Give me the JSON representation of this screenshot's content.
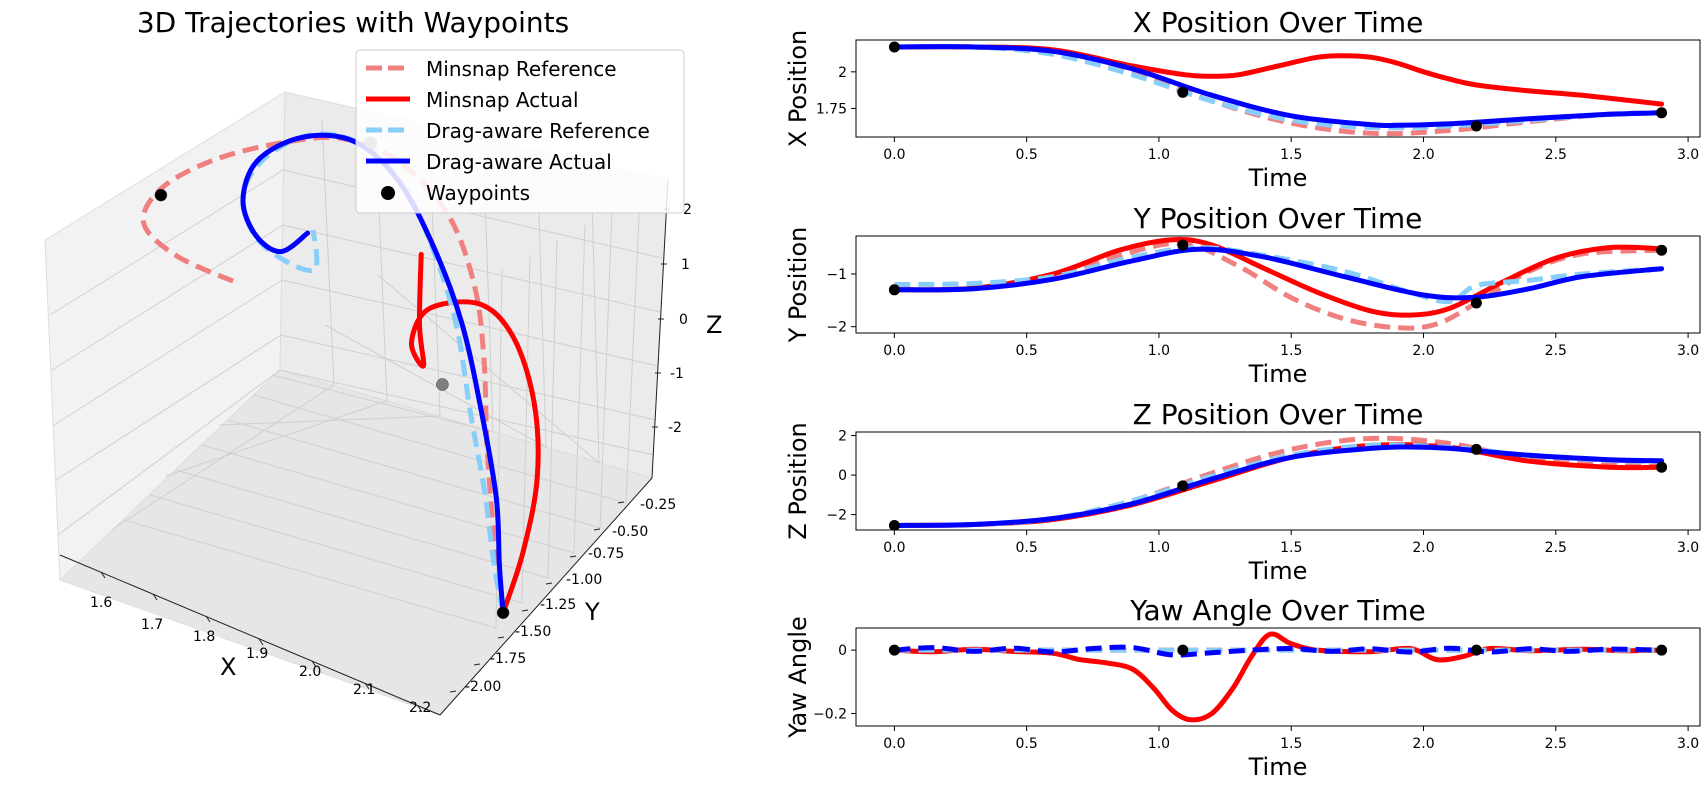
{
  "chart_data": [
    {
      "type": "line",
      "projection": "3d",
      "title": "3D Trajectories with Waypoints",
      "xlabel": "X",
      "ylabel": "Y",
      "zlabel": "Z",
      "xlim": [
        1.55,
        2.22
      ],
      "ylim": [
        -2.05,
        -0.2
      ],
      "zlim": [
        -2.5,
        2.0
      ],
      "xticks": [
        "1.6",
        "1.7",
        "1.8",
        "1.9",
        "2.0",
        "2.1",
        "2.2"
      ],
      "yticks": [
        "-0.25",
        "-0.50",
        "-0.75",
        "-1.00",
        "-1.25",
        "-1.50",
        "-1.75",
        "-2.00"
      ],
      "zticks": [
        "2",
        "1",
        "0",
        "-1",
        "-2"
      ],
      "legend": {
        "placement": "top-right",
        "entries": [
          "Minsnap Reference",
          "Minsnap Actual",
          "Drag-aware Reference",
          "Drag-aware Actual",
          "Waypoints"
        ]
      },
      "series": [
        {
          "name": "Minsnap Reference",
          "color": "#f08080",
          "style": "dashed",
          "points": [
            [
              2.18,
              -1.3,
              -2.55
            ],
            [
              2.16,
              -1.25,
              -2.1
            ],
            [
              2.13,
              -1.18,
              -1.5
            ],
            [
              2.09,
              -1.05,
              -0.8
            ],
            [
              2.04,
              -0.85,
              -0.1
            ],
            [
              1.98,
              -0.65,
              0.4
            ],
            [
              1.9,
              -0.5,
              0.9
            ],
            [
              1.8,
              -0.45,
              1.25
            ],
            [
              1.72,
              -0.55,
              1.5
            ],
            [
              1.66,
              -0.8,
              1.7
            ],
            [
              1.6,
              -1.1,
              1.8
            ],
            [
              1.57,
              -1.4,
              1.85
            ],
            [
              1.58,
              -1.6,
              1.75
            ],
            [
              1.65,
              -1.65,
              1.6
            ],
            [
              1.75,
              -1.6,
              1.45
            ]
          ]
        },
        {
          "name": "Minsnap Actual",
          "color": "#ff0000",
          "style": "solid",
          "points": [
            [
              2.18,
              -1.3,
              -2.55
            ],
            [
              2.19,
              -1.2,
              -1.8
            ],
            [
              2.18,
              -1.05,
              -1.0
            ],
            [
              2.14,
              -0.9,
              -0.3
            ],
            [
              2.07,
              -0.75,
              0.15
            ],
            [
              2.0,
              -0.7,
              0.3
            ],
            [
              1.94,
              -0.85,
              0.3
            ],
            [
              1.96,
              -1.1,
              0.35
            ],
            [
              2.02,
              -1.3,
              0.6
            ],
            [
              2.0,
              -1.25,
              1.05
            ],
            [
              1.95,
              -1.0,
              1.45
            ]
          ]
        },
        {
          "name": "Drag-aware Reference",
          "color": "#87cefa",
          "style": "dashed",
          "points": [
            [
              2.18,
              -1.3,
              -2.55
            ],
            [
              2.15,
              -1.25,
              -2.0
            ],
            [
              2.11,
              -1.15,
              -1.3
            ],
            [
              2.05,
              -1.0,
              -0.6
            ],
            [
              1.98,
              -0.8,
              0.1
            ],
            [
              1.9,
              -0.62,
              0.6
            ],
            [
              1.82,
              -0.5,
              1.05
            ],
            [
              1.74,
              -0.48,
              1.35
            ],
            [
              1.68,
              -0.62,
              1.55
            ],
            [
              1.65,
              -0.88,
              1.6
            ],
            [
              1.66,
              -1.12,
              1.55
            ],
            [
              1.71,
              -1.28,
              1.45
            ],
            [
              1.77,
              -1.32,
              1.35
            ],
            [
              1.82,
              -1.28,
              1.3
            ],
            [
              1.78,
              -1.1,
              1.4
            ]
          ]
        },
        {
          "name": "Drag-aware Actual",
          "color": "#0000ff",
          "style": "solid",
          "points": [
            [
              2.18,
              -1.3,
              -2.55
            ],
            [
              2.16,
              -1.25,
              -2.0
            ],
            [
              2.13,
              -1.15,
              -1.3
            ],
            [
              2.07,
              -1.0,
              -0.55
            ],
            [
              1.99,
              -0.8,
              0.15
            ],
            [
              1.9,
              -0.62,
              0.65
            ],
            [
              1.81,
              -0.5,
              1.1
            ],
            [
              1.73,
              -0.5,
              1.4
            ],
            [
              1.67,
              -0.66,
              1.55
            ],
            [
              1.64,
              -0.9,
              1.55
            ],
            [
              1.66,
              -1.12,
              1.45
            ],
            [
              1.71,
              -1.25,
              1.35
            ],
            [
              1.76,
              -1.28,
              1.35
            ],
            [
              1.78,
              -1.15,
              1.45
            ]
          ]
        }
      ],
      "waypoints": [
        [
          2.18,
          -1.3,
          -2.55
        ],
        [
          1.98,
          -0.9,
          -0.6
        ],
        [
          1.75,
          -0.45,
          1.35
        ],
        [
          1.57,
          -1.4,
          1.75
        ]
      ]
    },
    {
      "type": "line",
      "title": "X Position Over Time",
      "xlabel": "Time",
      "ylabel": "X Position",
      "xlim": [
        -0.145,
        3.045
      ],
      "ylim": [
        1.555,
        2.2175
      ],
      "xticks": [
        0.0,
        0.5,
        1.0,
        1.5,
        2.0,
        2.5,
        3.0
      ],
      "yticks": [
        1.75,
        2.0
      ],
      "series": [
        {
          "name": "Minsnap Reference",
          "color": "#f08080",
          "style": "dashed",
          "x": [
            0,
            0.3,
            0.6,
            0.9,
            1.2,
            1.5,
            1.8,
            2.1,
            2.4,
            2.7,
            2.9
          ],
          "values": [
            2.17,
            2.17,
            2.13,
            2.0,
            1.8,
            1.65,
            1.58,
            1.6,
            1.66,
            1.71,
            1.72
          ]
        },
        {
          "name": "Minsnap Actual",
          "color": "#ff0000",
          "style": "solid",
          "x": [
            0,
            0.3,
            0.6,
            0.9,
            1.1,
            1.2,
            1.3,
            1.45,
            1.6,
            1.7,
            1.8,
            1.9,
            2.0,
            2.1,
            2.2,
            2.4,
            2.6,
            2.9
          ],
          "values": [
            2.17,
            2.17,
            2.15,
            2.04,
            1.98,
            1.97,
            1.98,
            2.04,
            2.1,
            2.11,
            2.1,
            2.06,
            2.0,
            1.95,
            1.91,
            1.87,
            1.84,
            1.78
          ]
        },
        {
          "name": "Drag-aware Reference",
          "color": "#87cefa",
          "style": "dashed",
          "x": [
            0,
            0.3,
            0.6,
            0.9,
            1.2,
            1.5,
            1.8,
            2.1,
            2.4,
            2.7,
            2.9
          ],
          "values": [
            2.17,
            2.17,
            2.12,
            1.98,
            1.8,
            1.67,
            1.62,
            1.63,
            1.67,
            1.71,
            1.72
          ]
        },
        {
          "name": "Drag-aware Actual",
          "color": "#0000ff",
          "style": "solid",
          "x": [
            0,
            0.3,
            0.6,
            0.9,
            1.2,
            1.5,
            1.8,
            1.9,
            2.1,
            2.4,
            2.7,
            2.9
          ],
          "values": [
            2.17,
            2.17,
            2.14,
            2.02,
            1.84,
            1.7,
            1.64,
            1.635,
            1.645,
            1.68,
            1.71,
            1.72
          ]
        }
      ],
      "waypoints": {
        "x": [
          0,
          1.09,
          2.2,
          2.9
        ],
        "values": [
          2.17,
          1.86,
          1.63,
          1.72
        ]
      }
    },
    {
      "type": "line",
      "title": "Y Position Over Time",
      "xlabel": "Time",
      "ylabel": "Y Position",
      "xlim": [
        -0.145,
        3.045
      ],
      "ylim": [
        -2.12,
        -0.28
      ],
      "xticks": [
        0.0,
        0.5,
        1.0,
        1.5,
        2.0,
        2.5,
        3.0
      ],
      "yticks": [
        -2,
        -1
      ],
      "series": [
        {
          "name": "Minsnap Reference",
          "color": "#f08080",
          "style": "dashed",
          "x": [
            0,
            0.3,
            0.6,
            0.85,
            1.09,
            1.3,
            1.5,
            1.7,
            1.9,
            2.05,
            2.2,
            2.4,
            2.6,
            2.9
          ],
          "values": [
            -1.3,
            -1.27,
            -1.05,
            -0.65,
            -0.42,
            -0.85,
            -1.45,
            -1.85,
            -2.02,
            -1.95,
            -1.55,
            -0.95,
            -0.62,
            -0.55
          ]
        },
        {
          "name": "Minsnap Actual",
          "color": "#ff0000",
          "style": "solid",
          "x": [
            0,
            0.3,
            0.6,
            0.85,
            1.05,
            1.2,
            1.4,
            1.6,
            1.8,
            1.95,
            2.1,
            2.3,
            2.5,
            2.7,
            2.9
          ],
          "values": [
            -1.3,
            -1.27,
            -1.0,
            -0.55,
            -0.35,
            -0.45,
            -0.9,
            -1.35,
            -1.7,
            -1.78,
            -1.65,
            -1.15,
            -0.7,
            -0.5,
            -0.52
          ]
        },
        {
          "name": "Drag-aware Reference",
          "color": "#87cefa",
          "style": "dashed",
          "x": [
            0,
            0.3,
            0.6,
            0.9,
            1.15,
            1.4,
            1.7,
            1.95,
            2.1,
            2.2,
            2.4,
            2.6,
            2.9
          ],
          "values": [
            -1.2,
            -1.18,
            -1.05,
            -0.68,
            -0.5,
            -0.65,
            -0.95,
            -1.35,
            -1.52,
            -1.22,
            -1.12,
            -1.0,
            -0.9
          ]
        },
        {
          "name": "Drag-aware Actual",
          "color": "#0000ff",
          "style": "solid",
          "x": [
            0,
            0.3,
            0.6,
            0.9,
            1.15,
            1.4,
            1.7,
            2.0,
            2.2,
            2.4,
            2.6,
            2.9
          ],
          "values": [
            -1.3,
            -1.28,
            -1.1,
            -0.75,
            -0.53,
            -0.68,
            -1.05,
            -1.4,
            -1.44,
            -1.28,
            -1.05,
            -0.9
          ]
        }
      ],
      "waypoints": {
        "x": [
          0,
          1.09,
          2.2,
          2.9
        ],
        "values": [
          -1.3,
          -0.45,
          -1.55,
          -0.55
        ]
      }
    },
    {
      "type": "line",
      "title": "Z Position Over Time",
      "xlabel": "Time",
      "ylabel": "Z Position",
      "xlim": [
        -0.145,
        3.045
      ],
      "ylim": [
        -2.78,
        2.18
      ],
      "xticks": [
        0.0,
        0.5,
        1.0,
        1.5,
        2.0,
        2.5,
        3.0
      ],
      "yticks": [
        -2,
        0,
        2
      ],
      "series": [
        {
          "name": "Minsnap Reference",
          "color": "#f08080",
          "style": "dashed",
          "x": [
            0,
            0.3,
            0.6,
            0.9,
            1.2,
            1.5,
            1.8,
            2.1,
            2.4,
            2.7,
            2.9
          ],
          "values": [
            -2.55,
            -2.5,
            -2.2,
            -1.3,
            0.1,
            1.3,
            1.85,
            1.6,
            0.8,
            0.5,
            0.45
          ]
        },
        {
          "name": "Minsnap Actual",
          "color": "#ff0000",
          "style": "solid",
          "x": [
            0,
            0.3,
            0.6,
            0.9,
            1.2,
            1.5,
            1.8,
            2.1,
            2.4,
            2.7,
            2.9
          ],
          "values": [
            -2.55,
            -2.5,
            -2.25,
            -1.5,
            -0.3,
            0.9,
            1.5,
            1.4,
            0.7,
            0.4,
            0.4
          ]
        },
        {
          "name": "Drag-aware Reference",
          "color": "#87cefa",
          "style": "dashed",
          "x": [
            0,
            0.3,
            0.6,
            0.9,
            1.2,
            1.5,
            1.8,
            2.1,
            2.4,
            2.7,
            2.9
          ],
          "values": [
            -2.55,
            -2.5,
            -2.2,
            -1.3,
            -0.05,
            1.0,
            1.5,
            1.4,
            1.0,
            0.75,
            0.7
          ]
        },
        {
          "name": "Drag-aware Actual",
          "color": "#0000ff",
          "style": "solid",
          "x": [
            0,
            0.3,
            0.6,
            0.9,
            1.2,
            1.5,
            1.8,
            1.95,
            2.1,
            2.4,
            2.7,
            2.9
          ],
          "values": [
            -2.55,
            -2.5,
            -2.2,
            -1.45,
            -0.2,
            0.9,
            1.35,
            1.42,
            1.35,
            1.0,
            0.78,
            0.72
          ]
        }
      ],
      "waypoints": {
        "x": [
          0,
          1.09,
          2.2,
          2.9
        ],
        "values": [
          -2.55,
          -0.55,
          1.3,
          0.4
        ]
      }
    },
    {
      "type": "line",
      "title": "Yaw Angle Over Time",
      "xlabel": "Time",
      "ylabel": "Yaw Angle",
      "xlim": [
        -0.145,
        3.045
      ],
      "ylim": [
        -0.2395,
        0.0698
      ],
      "xticks": [
        0.0,
        0.5,
        1.0,
        1.5,
        2.0,
        2.5,
        3.0
      ],
      "yticks": [
        -0.2,
        0.0
      ],
      "series": [
        {
          "name": "Minsnap Reference",
          "color": "#f08080",
          "style": "dashed",
          "x": [
            0,
            2.9
          ],
          "values": [
            0.0,
            0.0
          ]
        },
        {
          "name": "Minsnap Actual",
          "color": "#ff0000",
          "style": "solid",
          "x": [
            0,
            0.15,
            0.3,
            0.45,
            0.6,
            0.7,
            0.8,
            0.9,
            0.98,
            1.05,
            1.12,
            1.2,
            1.28,
            1.35,
            1.42,
            1.5,
            1.6,
            1.8,
            1.95,
            2.05,
            2.15,
            2.25,
            2.4,
            2.6,
            2.75,
            2.9
          ],
          "values": [
            0.0,
            -0.005,
            0.003,
            -0.004,
            -0.01,
            -0.03,
            -0.04,
            -0.06,
            -0.12,
            -0.19,
            -0.22,
            -0.2,
            -0.12,
            -0.02,
            0.05,
            0.02,
            0.0,
            -0.005,
            0.005,
            -0.03,
            -0.02,
            0.005,
            -0.002,
            0.003,
            -0.002,
            0.0
          ]
        },
        {
          "name": "Drag-aware Reference",
          "color": "#87cefa",
          "style": "dashed",
          "x": [
            0,
            2.9
          ],
          "values": [
            0.0,
            0.0
          ]
        },
        {
          "name": "Drag-aware Actual",
          "color": "#0000ff",
          "style": "dashed",
          "x": [
            0,
            0.15,
            0.3,
            0.45,
            0.6,
            0.75,
            0.9,
            1.05,
            1.2,
            1.35,
            1.5,
            1.65,
            1.8,
            1.95,
            2.1,
            2.25,
            2.4,
            2.55,
            2.7,
            2.9
          ],
          "values": [
            0.0,
            0.008,
            -0.004,
            0.006,
            -0.006,
            0.005,
            0.008,
            -0.015,
            -0.008,
            0.0,
            0.005,
            -0.004,
            0.004,
            -0.006,
            0.006,
            -0.006,
            0.004,
            -0.004,
            0.003,
            0.0
          ]
        }
      ],
      "waypoints": {
        "x": [
          0,
          1.09,
          2.2,
          2.9
        ],
        "values": [
          0.0,
          0.0,
          0.0,
          0.0
        ]
      }
    }
  ]
}
